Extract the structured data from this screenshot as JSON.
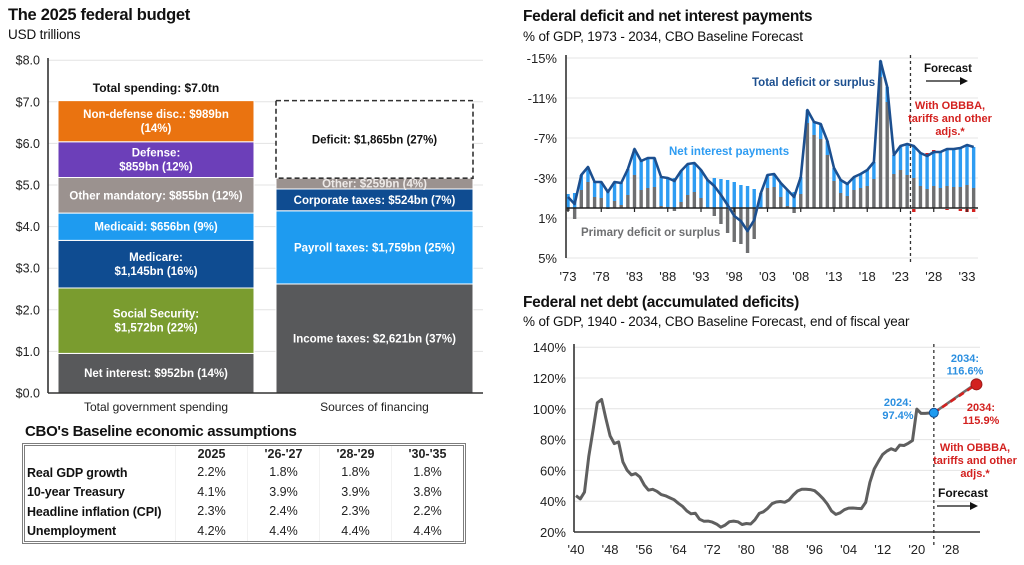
{
  "chart_data": [
    {
      "type": "bar",
      "stacked": true,
      "title": "The 2025 federal budget",
      "subtitle": "USD trillions",
      "xlabel": "",
      "ylabel": "",
      "ylim": [
        0,
        8
      ],
      "grid": true,
      "yticks": [
        0,
        1,
        2,
        3,
        4,
        5,
        6,
        7,
        8
      ],
      "ytick_labels": [
        "$0.0",
        "$1.0",
        "$2.0",
        "$3.0",
        "$4.0",
        "$5.0",
        "$6.0",
        "$7.0",
        "$8.0"
      ],
      "categories": [
        "Total government spending",
        "Sources of financing"
      ],
      "annotation": "Total spending: $7.0tn",
      "stacks": [
        {
          "category": "Total government spending",
          "segments": [
            {
              "name": "Net interest",
              "value": 0.952,
              "label_lines": [
                "Net interest: $952bn (14%)"
              ],
              "color": "#58595b"
            },
            {
              "name": "Social Security",
              "value": 1.572,
              "label_lines": [
                "Social Security:",
                "$1,572bn (22%)"
              ],
              "color": "#7a9c2f"
            },
            {
              "name": "Medicare",
              "value": 1.145,
              "label_lines": [
                "Medicare:",
                "$1,145bn (16%)"
              ],
              "color": "#0f4c91"
            },
            {
              "name": "Medicaid",
              "value": 0.656,
              "label_lines": [
                "Medicaid: $656bn (9%)"
              ],
              "color": "#1e9bf0"
            },
            {
              "name": "Other mandatory",
              "value": 0.855,
              "label_lines": [
                "Other mandatory: $855bn (12%)"
              ],
              "color": "#9b928f"
            },
            {
              "name": "Defense",
              "value": 0.859,
              "label_lines": [
                "Defense:",
                "$859bn (12%)"
              ],
              "color": "#6c3fb9"
            },
            {
              "name": "Non-defense disc.",
              "value": 0.989,
              "label_lines": [
                "Non-defense disc.: $989bn",
                "(14%)"
              ],
              "color": "#ea7310"
            }
          ]
        },
        {
          "category": "Sources of financing",
          "segments": [
            {
              "name": "Income taxes",
              "value": 2.621,
              "label_lines": [
                "Income taxes: $2,621bn (37%)"
              ],
              "color": "#58595b"
            },
            {
              "name": "Payroll taxes",
              "value": 1.759,
              "label_lines": [
                "Payroll taxes: $1,759bn (25%)"
              ],
              "color": "#1e9bf0"
            },
            {
              "name": "Corporate taxes",
              "value": 0.524,
              "label_lines": [
                "Corporate taxes: $524bn (7%)"
              ],
              "color": "#0f4c91"
            },
            {
              "name": "Other",
              "value": 0.259,
              "label_lines": [
                "Other: $259bn (4%)"
              ],
              "color": "#9b928f",
              "text_color": "#eeeae8"
            },
            {
              "name": "Deficit",
              "value": 1.865,
              "label_lines": [
                "Deficit: $1,865bn (27%)"
              ],
              "color": "#ffffff",
              "dashed": true,
              "text_color": "#111111"
            }
          ]
        }
      ]
    },
    {
      "type": "bar",
      "subtype": "stacked bar with line overlay",
      "title": "Federal deficit and net interest payments",
      "subtitle": "% of GDP, 1973 - 2034, CBO Baseline Forecast",
      "xlabel": "",
      "ylabel": "",
      "ylim": [
        -15,
        5
      ],
      "y_inverted": true,
      "grid": true,
      "yticks": [
        -15,
        -11,
        -7,
        -3,
        1,
        5
      ],
      "ytick_labels": [
        "-15%",
        "-11%",
        "-7%",
        "-3%",
        "1%",
        "5%"
      ],
      "xticks": [
        1973,
        1978,
        1983,
        1988,
        1993,
        1998,
        2003,
        2008,
        2013,
        2018,
        2023,
        2028,
        2033
      ],
      "xtick_labels": [
        "'73",
        "'78",
        "'83",
        "'88",
        "'93",
        "'98",
        "'03",
        "'08",
        "'13",
        "'18",
        "'23",
        "'28",
        "'33"
      ],
      "forecast_start_year": 2025,
      "years": [
        1973,
        1974,
        1975,
        1976,
        1977,
        1978,
        1979,
        1980,
        1981,
        1982,
        1983,
        1984,
        1985,
        1986,
        1987,
        1988,
        1989,
        1990,
        1991,
        1992,
        1993,
        1994,
        1995,
        1996,
        1997,
        1998,
        1999,
        2000,
        2001,
        2002,
        2003,
        2004,
        2005,
        2006,
        2007,
        2008,
        2009,
        2010,
        2011,
        2012,
        2013,
        2014,
        2015,
        2016,
        2017,
        2018,
        2019,
        2020,
        2021,
        2022,
        2023,
        2024,
        2025,
        2026,
        2027,
        2028,
        2029,
        2030,
        2031,
        2032,
        2033,
        2034
      ],
      "series": [
        {
          "name": "Total deficit or surplus",
          "type": "line",
          "color": "#1c4f8f",
          "values": [
            -1.1,
            -0.4,
            -3.3,
            -4.1,
            -2.6,
            -2.6,
            -1.6,
            -2.6,
            -2.5,
            -3.9,
            -5.9,
            -4.7,
            -5.0,
            -5.0,
            -3.1,
            -3.0,
            -2.7,
            -3.7,
            -4.4,
            -4.5,
            -3.8,
            -2.8,
            -2.2,
            -1.3,
            -0.3,
            0.8,
            1.3,
            2.3,
            1.2,
            -1.5,
            -3.3,
            -3.4,
            -2.5,
            -1.8,
            -1.1,
            -3.1,
            -9.8,
            -8.6,
            -8.4,
            -6.7,
            -4.0,
            -2.8,
            -2.4,
            -3.1,
            -3.4,
            -3.8,
            -4.6,
            -14.7,
            -12.1,
            -5.3,
            -6.2,
            -6.4,
            -6.2,
            -5.5,
            -5.2,
            -5.6,
            -5.6,
            -5.9,
            -5.9,
            -6.0,
            -6.3,
            -6.1
          ]
        },
        {
          "name": "Net interest payments",
          "type": "bar",
          "color": "#2e9cf2",
          "values": [
            1.4,
            1.5,
            1.5,
            1.5,
            1.5,
            1.6,
            1.7,
            1.9,
            2.2,
            2.6,
            2.6,
            2.9,
            3.0,
            2.9,
            2.9,
            2.9,
            3.0,
            3.1,
            3.1,
            2.9,
            2.8,
            2.8,
            3.0,
            2.9,
            2.8,
            2.6,
            2.3,
            2.2,
            1.9,
            1.5,
            1.3,
            1.3,
            1.4,
            1.6,
            1.6,
            1.7,
            1.3,
            1.3,
            1.5,
            1.4,
            1.3,
            1.3,
            1.2,
            1.3,
            1.4,
            1.6,
            1.7,
            1.6,
            1.5,
            1.9,
            2.4,
            3.1,
            3.2,
            3.3,
            3.3,
            3.4,
            3.6,
            3.7,
            3.8,
            3.9,
            4.0,
            4.1
          ]
        },
        {
          "name": "Primary deficit or surplus",
          "type": "bar",
          "color": "#6e6f71",
          "values": [
            0.3,
            1.1,
            -1.8,
            -2.6,
            -1.1,
            -1.0,
            0.1,
            -0.7,
            -0.3,
            -1.3,
            -3.3,
            -1.8,
            -2.0,
            -2.1,
            -0.2,
            -0.1,
            0.3,
            -0.6,
            -1.3,
            -1.6,
            -1.0,
            0.0,
            0.8,
            1.6,
            2.5,
            3.4,
            3.6,
            4.5,
            3.1,
            0.0,
            -2.0,
            -2.1,
            -1.1,
            -0.2,
            0.5,
            -1.4,
            -8.5,
            -7.3,
            -6.9,
            -5.3,
            -2.7,
            -1.5,
            -1.2,
            -1.8,
            -2.0,
            -2.2,
            -2.9,
            -13.1,
            -10.6,
            -3.4,
            -3.8,
            -3.3,
            -3.0,
            -2.2,
            -1.9,
            -2.2,
            -2.0,
            -2.2,
            -2.1,
            -2.1,
            -2.3,
            -2.0
          ]
        }
      ],
      "obbba_adjustments": [
        {
          "year": 2025,
          "value": 0.3
        },
        {
          "year": 2027,
          "value": -0.3
        },
        {
          "year": 2028,
          "value": -0.2
        },
        {
          "year": 2030,
          "value": 0.1
        },
        {
          "year": 2032,
          "value": 0.2
        },
        {
          "year": 2033,
          "value": 0.3
        },
        {
          "year": 2034,
          "value": 0.3
        }
      ],
      "colors": {
        "obbba": "#d3211f",
        "zero_line": "#222222",
        "forecast_divider": "#333333"
      },
      "labels": {
        "total_line": "Total deficit or surplus",
        "net_interest": "Net interest payments",
        "primary": "Primary deficit or surplus",
        "forecast": "Forecast",
        "obbba_note": [
          "With OBBBA,",
          "tariffs and other",
          "adjs.*"
        ]
      }
    },
    {
      "type": "line",
      "title": "Federal net debt (accumulated deficits)",
      "subtitle": "% of GDP, 1940 - 2034, CBO Baseline Forecast, end of fiscal year",
      "xlabel": "",
      "ylabel": "",
      "ylim": [
        20,
        140
      ],
      "grid": true,
      "yticks": [
        20,
        40,
        60,
        80,
        100,
        120,
        140
      ],
      "ytick_labels": [
        "20%",
        "40%",
        "60%",
        "80%",
        "100%",
        "120%",
        "140%"
      ],
      "xticks": [
        1940,
        1948,
        1956,
        1964,
        1972,
        1980,
        1988,
        1996,
        2004,
        2012,
        2020,
        2028
      ],
      "xtick_labels": [
        "'40",
        "'48",
        "'56",
        "'64",
        "'72",
        "'80",
        "'88",
        "'96",
        "'04",
        "'12",
        "'20",
        "'28"
      ],
      "years": [
        1940,
        1941,
        1942,
        1943,
        1944,
        1945,
        1946,
        1947,
        1948,
        1949,
        1950,
        1951,
        1952,
        1953,
        1954,
        1955,
        1956,
        1957,
        1958,
        1959,
        1960,
        1961,
        1962,
        1963,
        1964,
        1965,
        1966,
        1967,
        1968,
        1969,
        1970,
        1971,
        1972,
        1973,
        1974,
        1975,
        1976,
        1977,
        1978,
        1979,
        1980,
        1981,
        1982,
        1983,
        1984,
        1985,
        1986,
        1987,
        1988,
        1989,
        1990,
        1991,
        1992,
        1993,
        1994,
        1995,
        1996,
        1997,
        1998,
        1999,
        2000,
        2001,
        2002,
        2003,
        2004,
        2005,
        2006,
        2007,
        2008,
        2009,
        2010,
        2011,
        2012,
        2013,
        2014,
        2015,
        2016,
        2017,
        2018,
        2019,
        2020,
        2021,
        2022,
        2023,
        2024
      ],
      "values": [
        43.6,
        41.5,
        45.9,
        69.2,
        86.0,
        103.9,
        106.1,
        93.9,
        82.4,
        77.4,
        78.5,
        65.5,
        60.1,
        57.1,
        57.9,
        55.7,
        50.6,
        47.2,
        47.7,
        46.4,
        44.3,
        43.5,
        42.3,
        41.0,
        38.7,
        36.7,
        33.7,
        31.8,
        32.2,
        28.3,
        27.0,
        27.1,
        26.4,
        25.1,
        23.1,
        24.5,
        26.7,
        27.1,
        26.6,
        24.9,
        25.5,
        25.2,
        27.9,
        32.1,
        33.1,
        35.3,
        38.4,
        39.5,
        39.8,
        39.3,
        40.8,
        44.0,
        46.6,
        47.8,
        47.7,
        47.5,
        46.8,
        44.5,
        41.6,
        38.2,
        33.6,
        31.4,
        32.5,
        34.5,
        35.5,
        35.6,
        35.3,
        35.2,
        39.2,
        52.3,
        60.9,
        65.9,
        70.4,
        72.6,
        74.1,
        72.9,
        76.4,
        76.2,
        77.6,
        79.4,
        99.8,
        97.0,
        97.0,
        97.3,
        97.4
      ],
      "forecast": {
        "baseline": [
          {
            "year": 2024,
            "value": 97.4
          },
          {
            "year": 2034,
            "value": 116.6
          }
        ],
        "obbba": [
          {
            "year": 2024,
            "value": 97.4
          },
          {
            "year": 2034,
            "value": 115.9
          }
        ]
      },
      "colors": {
        "history": "#5f5f5f",
        "baseline": "#1e9bf0",
        "baseline_label": "#2b8fe0",
        "obbba": "#d3211f",
        "forecast_divider": "#333333"
      },
      "labels": {
        "start": [
          "2024:",
          "97.4%"
        ],
        "baseline_end": [
          "2034:",
          "116.6%"
        ],
        "obbba_end": [
          "2034:",
          "115.9%"
        ],
        "obbba_note": [
          "With OBBBA,",
          "tariffs and other",
          "adjs.*"
        ],
        "forecast": "Forecast"
      }
    }
  ],
  "table": {
    "title": "CBO's Baseline economic assumptions",
    "columns": [
      "",
      "2025",
      "'26-'27",
      "'28-'29",
      "'30-'35"
    ],
    "rows": [
      {
        "label": "Real GDP growth",
        "values": [
          "2.2%",
          "1.8%",
          "1.8%",
          "1.8%"
        ]
      },
      {
        "label": "10-year Treasury",
        "values": [
          "4.1%",
          "3.9%",
          "3.9%",
          "3.8%"
        ]
      },
      {
        "label": "Headline inflation (CPI)",
        "values": [
          "2.3%",
          "2.4%",
          "2.3%",
          "2.2%"
        ]
      },
      {
        "label": "Unemployment",
        "values": [
          "4.2%",
          "4.4%",
          "4.4%",
          "4.4%"
        ]
      }
    ]
  }
}
